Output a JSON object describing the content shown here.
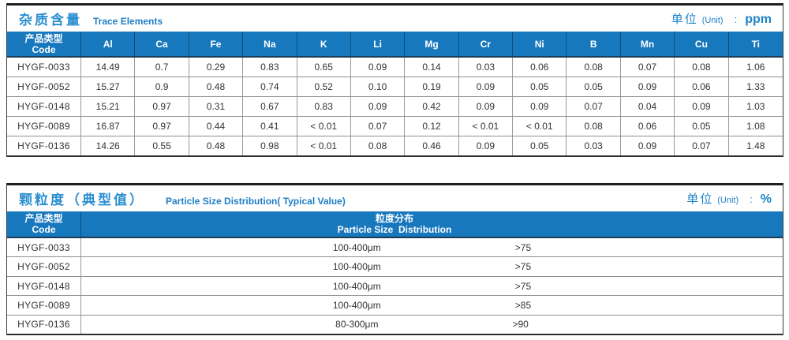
{
  "colors": {
    "header_blue": "#1878be",
    "title_blue": "#2b8fd0",
    "unit_blue": "#1e83c9",
    "border_dark": "#2e2e2e",
    "grid_gray": "#8f8f8f",
    "text_dark": "#333333"
  },
  "trace_table": {
    "title_zh": "杂质含量",
    "title_en": "Trace Elements",
    "unit_label": "单位",
    "unit_paren": "(Unit)",
    "unit_colon": ":",
    "unit_value": "ppm",
    "code_header_zh": "产品类型",
    "code_header_en": "Code",
    "columns": [
      "Al",
      "Ca",
      "Fe",
      "Na",
      "K",
      "Li",
      "Mg",
      "Cr",
      "Ni",
      "B",
      "Mn",
      "Cu",
      "Ti"
    ],
    "rows": [
      {
        "code": "HYGF-0033",
        "values": [
          "14.49",
          "0.7",
          "0.29",
          "0.83",
          "0.65",
          "0.09",
          "0.14",
          "0.03",
          "0.06",
          "0.08",
          "0.07",
          "0.08",
          "1.06"
        ]
      },
      {
        "code": "HYGF-0052",
        "values": [
          "15.27",
          "0.9",
          "0.48",
          "0.74",
          "0.52",
          "0.10",
          "0.19",
          "0.09",
          "0.05",
          "0.05",
          "0.09",
          "0.06",
          "1.33"
        ]
      },
      {
        "code": "HYGF-0148",
        "values": [
          "15.21",
          "0.97",
          "0.31",
          "0.67",
          "0.83",
          "0.09",
          "0.42",
          "0.09",
          "0.09",
          "0.07",
          "0.04",
          "0.09",
          "1.03"
        ]
      },
      {
        "code": "HYGF-0089",
        "values": [
          "16.87",
          "0.97",
          "0.44",
          "0.41",
          "< 0.01",
          "0.07",
          "0.12",
          "< 0.01",
          "< 0.01",
          "0.08",
          "0.06",
          "0.05",
          "1.08"
        ]
      },
      {
        "code": "HYGF-0136",
        "values": [
          "14.26",
          "0.55",
          "0.48",
          "0.98",
          "< 0.01",
          "0.08",
          "0.46",
          "0.09",
          "0.05",
          "0.03",
          "0.09",
          "0.07",
          "1.48"
        ]
      }
    ]
  },
  "particle_table": {
    "title_zh": "颗粒度（典型值）",
    "title_en": "Particle Size Distribution( Typical Value)",
    "unit_label": "单位",
    "unit_paren": "(Unit)",
    "unit_colon": ":",
    "unit_value": "%",
    "code_header_zh": "产品类型",
    "code_header_en": "Code",
    "dist_header_zh": "粒度分布",
    "dist_header_en": "Particle Size  Distribution",
    "rows": [
      {
        "code": "HYGF-0033",
        "range": "100-400μm",
        "percent": ">75"
      },
      {
        "code": "HYGF-0052",
        "range": "100-400μm",
        "percent": ">75"
      },
      {
        "code": "HYGF-0148",
        "range": "100-400μm",
        "percent": ">75"
      },
      {
        "code": "HYGF-0089",
        "range": "100-400μm",
        "percent": ">85"
      },
      {
        "code": "HYGF-0136",
        "range": "80-300μm",
        "percent": ">90"
      }
    ]
  }
}
